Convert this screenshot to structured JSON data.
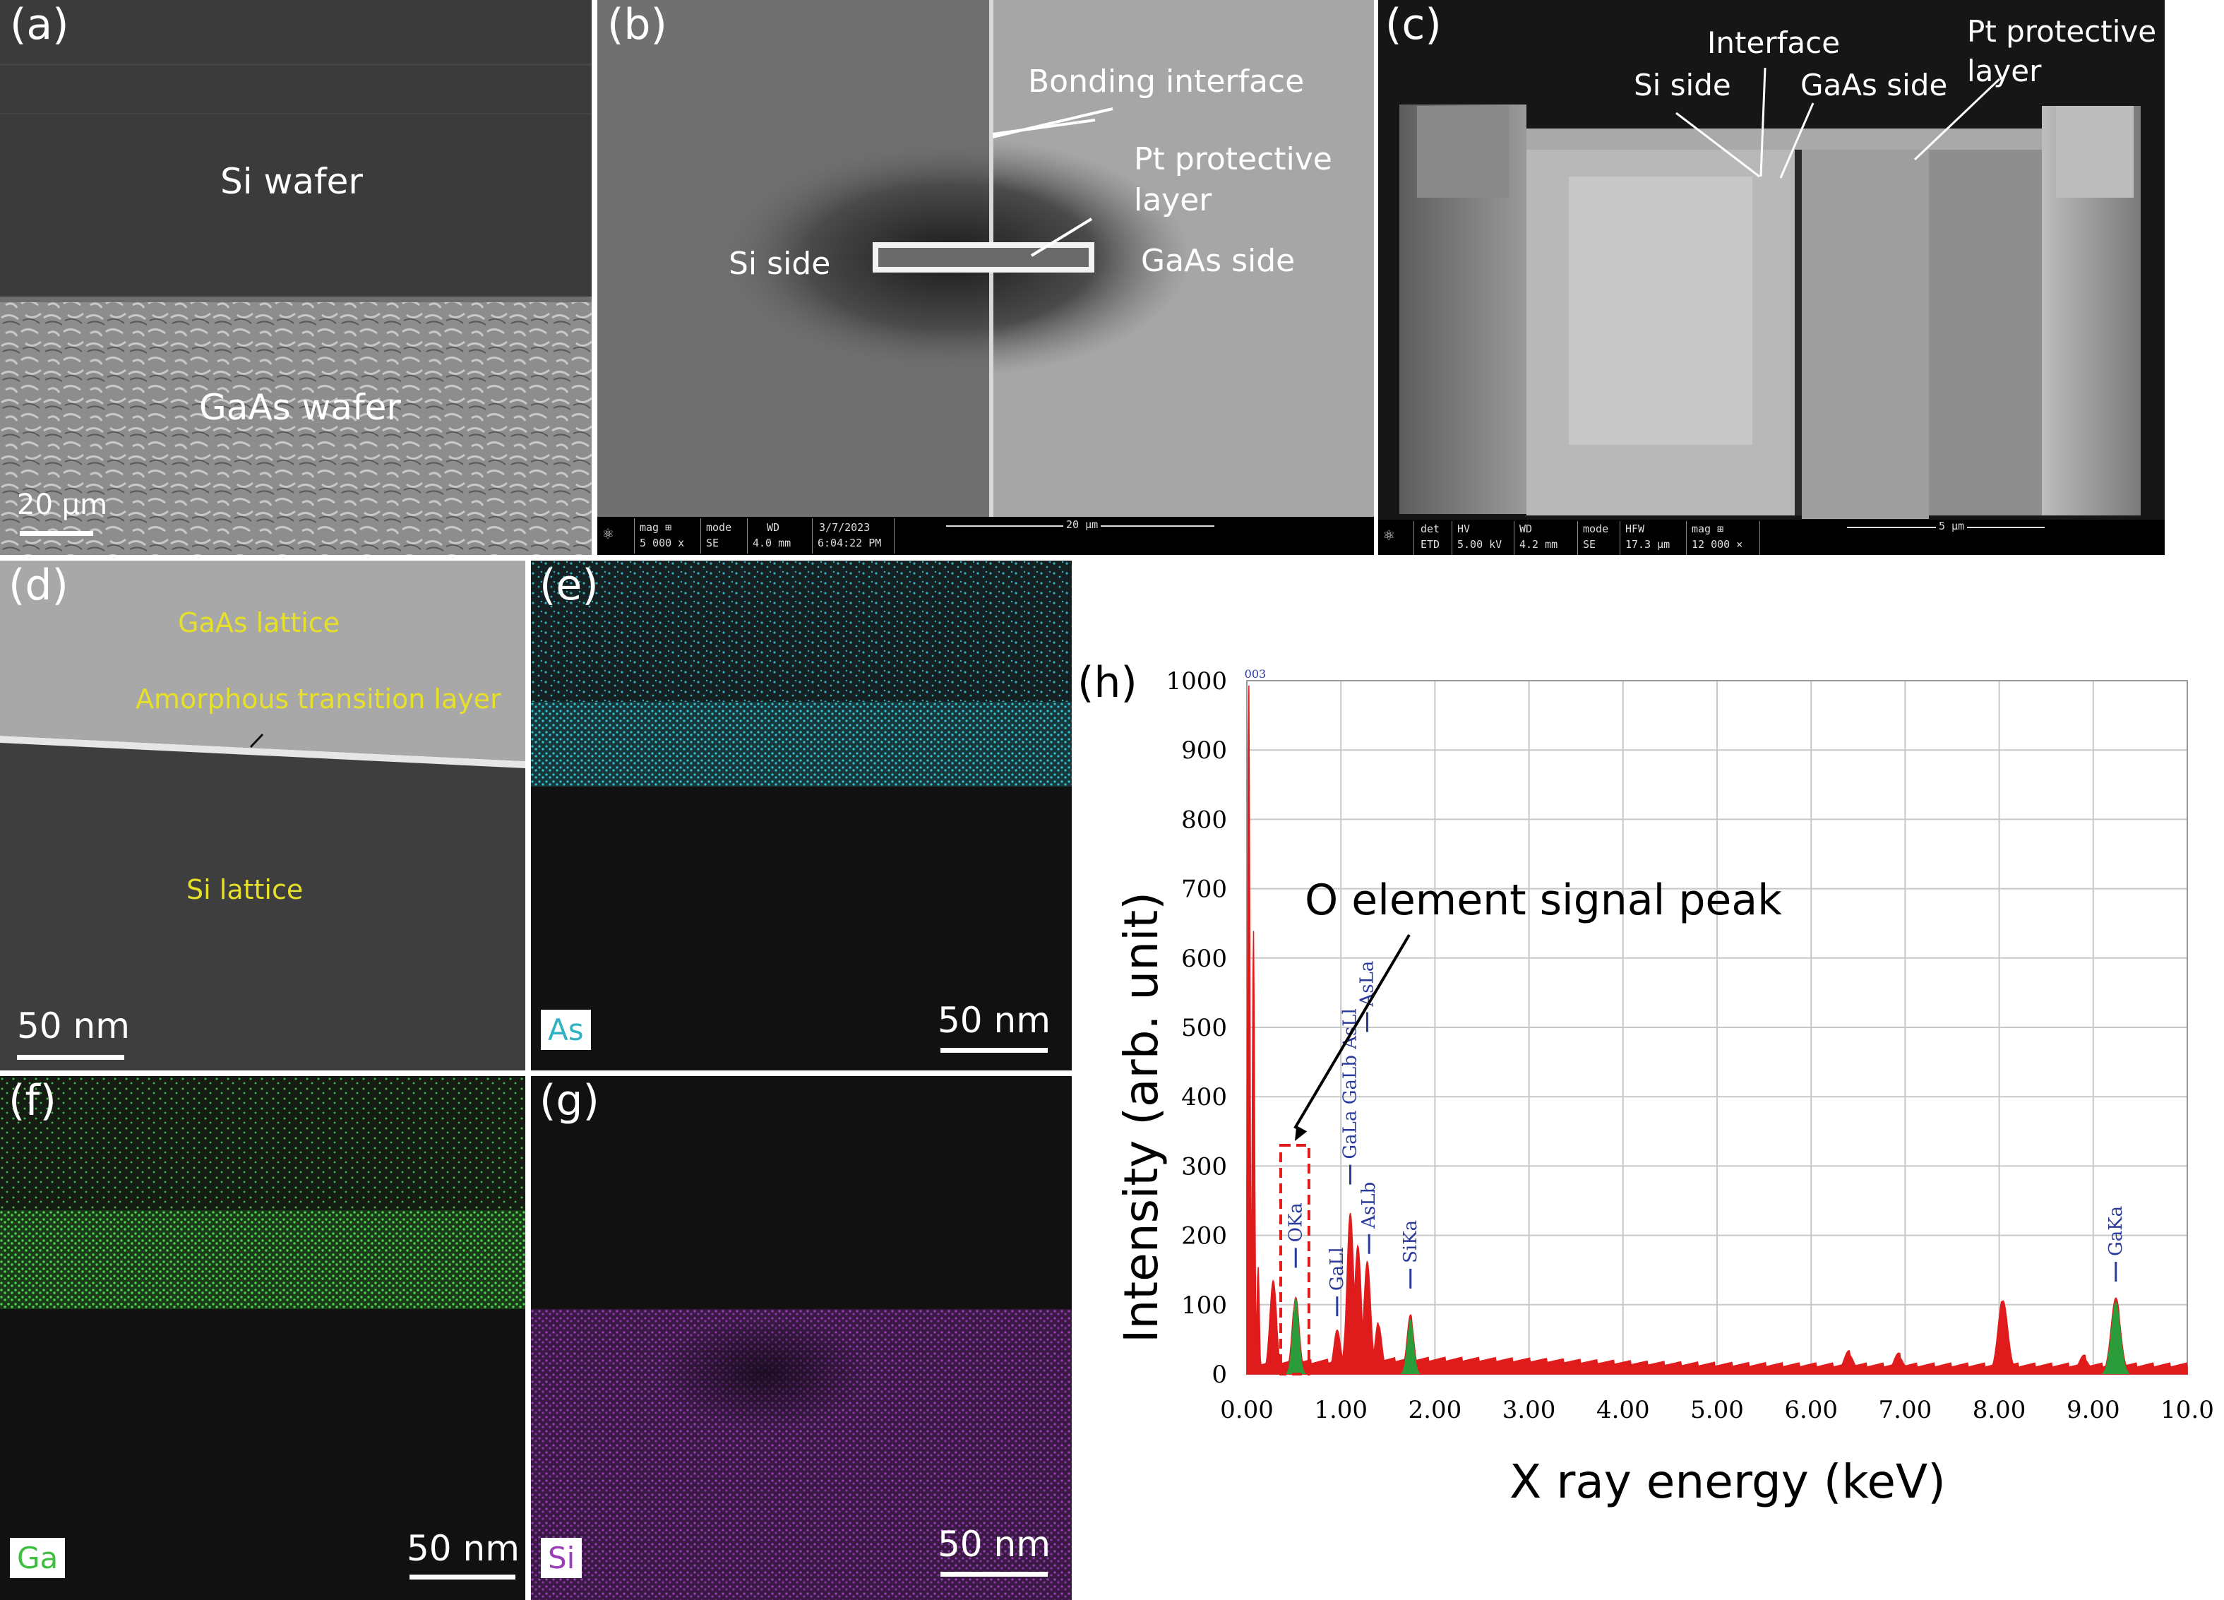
{
  "panels": {
    "a": {
      "label": "(a)",
      "region_top": "Si wafer",
      "region_bottom": "GaAs wafer",
      "scalebar": "20 µm"
    },
    "b": {
      "label": "(b)",
      "annotations": {
        "bonding_interface": "Bonding interface",
        "pt_line1": "Pt protective",
        "pt_line2": "layer",
        "si_side": "Si side",
        "gaas_side": "GaAs side"
      },
      "infobar": {
        "mag_label": "mag ⊞",
        "mag_value": "5 000 x",
        "mode_label": "mode",
        "mode_value": "SE",
        "wd_label": "WD",
        "wd_value": "4.0 mm",
        "date": "3/7/2023",
        "time": "6:04:22 PM",
        "scale": "20 µm"
      }
    },
    "c": {
      "label": "(c)",
      "annotations": {
        "interface": "Interface",
        "si_side": "Si side",
        "gaas_side": "GaAs side",
        "pt_line1": "Pt protective",
        "pt_line2": "layer"
      },
      "infobar": {
        "det_label": "det",
        "det_value": "ETD",
        "hv_label": "HV",
        "hv_value": "5.00 kV",
        "wd_label": "WD",
        "wd_value": "4.2 mm",
        "mode_label": "mode",
        "mode_value": "SE",
        "hfw_label": "HFW",
        "hfw_value": "17.3 µm",
        "mag_label": "mag ⊞",
        "mag_value": "12 000 ×",
        "scale": "5 µm"
      }
    },
    "d": {
      "label": "(d)",
      "gaas": "GaAs lattice",
      "amorphous": "Amorphous transition layer",
      "si": "Si lattice",
      "scalebar": "50 nm"
    },
    "e": {
      "label": "(e)",
      "element": "As",
      "scalebar": "50 nm",
      "color": "#2fb3c2"
    },
    "f": {
      "label": "(f)",
      "element": "Ga",
      "scalebar": "50 nm",
      "color": "#3fbf3f"
    },
    "g": {
      "label": "(g)",
      "element": "Si",
      "scalebar": "50 nm",
      "color": "#9b3fb8"
    },
    "h": {
      "label": "(h)",
      "annotation": "O element signal peak"
    }
  },
  "chart_data": {
    "type": "line",
    "title": "",
    "xlabel": "X ray energy (keV)",
    "ylabel": "Intensity (arb. unit)",
    "xlim": [
      0,
      10
    ],
    "ylim": [
      0,
      1000
    ],
    "x_ticks": [
      "0.00",
      "1.00",
      "2.00",
      "3.00",
      "4.00",
      "5.00",
      "6.00",
      "7.00",
      "8.00",
      "9.00",
      "10.0"
    ],
    "y_ticks": [
      "0",
      "100",
      "200",
      "300",
      "400",
      "500",
      "600",
      "700",
      "800",
      "900",
      "1000"
    ],
    "grid": true,
    "spectrum_color": "#e01b1b",
    "highlight_color": "#2a9d3a",
    "label_color": "#2a3a9a",
    "top_marker": "003",
    "peaks": [
      {
        "x": 0.02,
        "y": 1000
      },
      {
        "x": 0.07,
        "y": 640
      },
      {
        "x": 0.12,
        "y": 150
      },
      {
        "x": 0.28,
        "y": 130
      },
      {
        "x": 0.52,
        "y": 110
      },
      {
        "x": 0.96,
        "y": 60
      },
      {
        "x": 1.1,
        "y": 230
      },
      {
        "x": 1.18,
        "y": 180
      },
      {
        "x": 1.28,
        "y": 160
      },
      {
        "x": 1.4,
        "y": 70
      },
      {
        "x": 1.74,
        "y": 80
      },
      {
        "x": 6.4,
        "y": 28
      },
      {
        "x": 6.93,
        "y": 25
      },
      {
        "x": 8.04,
        "y": 105
      },
      {
        "x": 8.9,
        "y": 22
      },
      {
        "x": 9.24,
        "y": 105
      }
    ],
    "highlighted_peaks": [
      {
        "x": 0.52,
        "y": 110
      },
      {
        "x": 1.74,
        "y": 80
      },
      {
        "x": 9.24,
        "y": 105
      }
    ],
    "peak_labels": [
      {
        "text": "OKa",
        "x": 0.52,
        "y": 190
      },
      {
        "text": "GaLl",
        "x": 0.96,
        "y": 120
      },
      {
        "text": "GaLa GaLb AsLl",
        "x": 1.1,
        "y": 310
      },
      {
        "text": "AsLa",
        "x": 1.28,
        "y": 530
      },
      {
        "text": "AsLb",
        "x": 1.3,
        "y": 210
      },
      {
        "text": "SiKa",
        "x": 1.74,
        "y": 160
      },
      {
        "text": "GaKa",
        "x": 9.24,
        "y": 170
      }
    ],
    "highlight_box": {
      "x_range": [
        0.36,
        0.66
      ],
      "y_range": [
        0,
        330
      ]
    }
  }
}
